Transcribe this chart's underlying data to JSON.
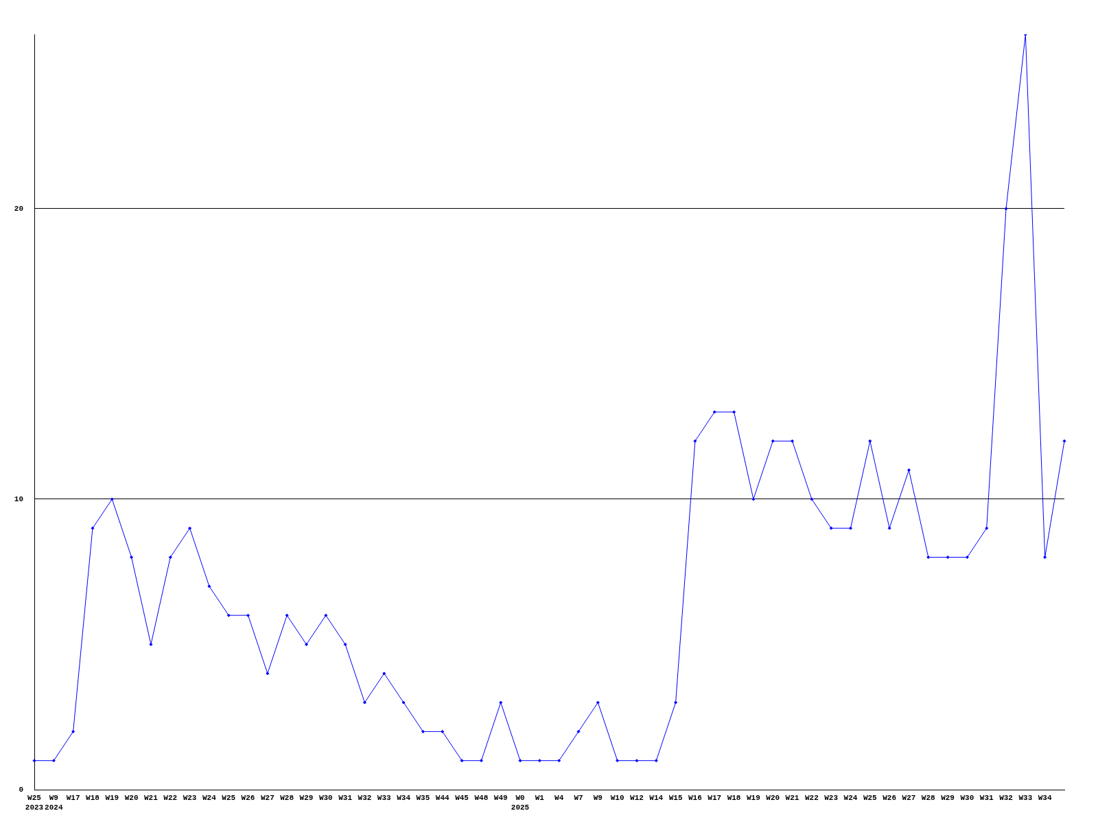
{
  "chart_data": {
    "type": "line",
    "categories": [
      "W25\n2023",
      "W9\n2024",
      "W17",
      "W18",
      "W19",
      "W20",
      "W21",
      "W22",
      "W23",
      "W24",
      "W25",
      "W26",
      "W27",
      "W28",
      "W29",
      "W30",
      "W31",
      "W32",
      "W33",
      "W34",
      "W35",
      "W44",
      "W45",
      "W48",
      "W49",
      "W0\n2025",
      "W1",
      "W4",
      "W7",
      "W9",
      "W10",
      "W12",
      "W14",
      "W15",
      "W16",
      "W17",
      "W18",
      "W19",
      "W20",
      "W21",
      "W22",
      "W23",
      "W24",
      "W25",
      "W26",
      "W27",
      "W28",
      "W29",
      "W30",
      "W31",
      "W32",
      "W33",
      "W34",
      null
    ],
    "series": [
      {
        "color": "#0000ff",
        "values": [
          1,
          1,
          2,
          9,
          10,
          8,
          5,
          8,
          9,
          7,
          6,
          6,
          4,
          6,
          5,
          6,
          5,
          3,
          4,
          3,
          2,
          2,
          1,
          1,
          3,
          1,
          1,
          1,
          2,
          3,
          1,
          1,
          1,
          3,
          12,
          13,
          13,
          10,
          12,
          12,
          10,
          9,
          9,
          12,
          9,
          11,
          8,
          8,
          8,
          9,
          20,
          26,
          8,
          12
        ]
      }
    ],
    "ylim": [
      0,
      26
    ],
    "yticks": [
      0,
      10,
      20
    ],
    "grid": "y",
    "legend": false,
    "marker": "diamond",
    "line_style": "solid"
  }
}
